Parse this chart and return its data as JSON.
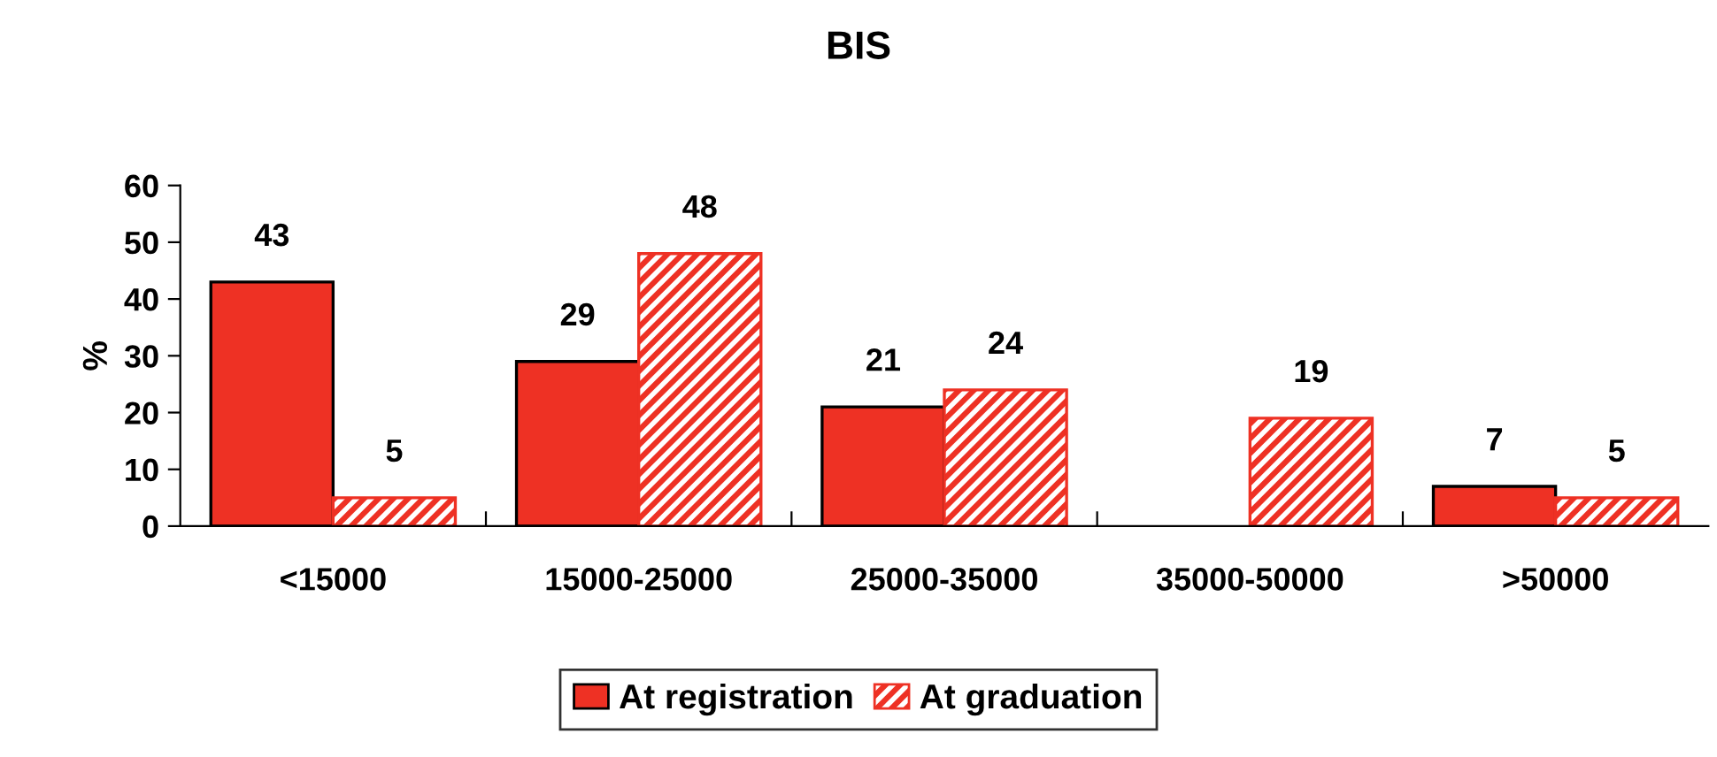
{
  "chart_data": {
    "type": "bar",
    "title": "BIS",
    "ylabel": "%",
    "categories": [
      "<15000",
      "15000-25000",
      "25000-35000",
      "35000-50000",
      ">50000"
    ],
    "series": [
      {
        "name": "At registration",
        "color": "#ee3124",
        "values": [
          43,
          29,
          21,
          null,
          7
        ]
      },
      {
        "name": "At graduation",
        "color": "#ee3124",
        "values": [
          5,
          48,
          24,
          19,
          5
        ]
      }
    ],
    "ylim": [
      0,
      60
    ],
    "yticks": [
      0,
      10,
      20,
      30,
      40,
      50,
      60
    ],
    "grid": false,
    "data_labels": true,
    "legend": "bottom"
  }
}
